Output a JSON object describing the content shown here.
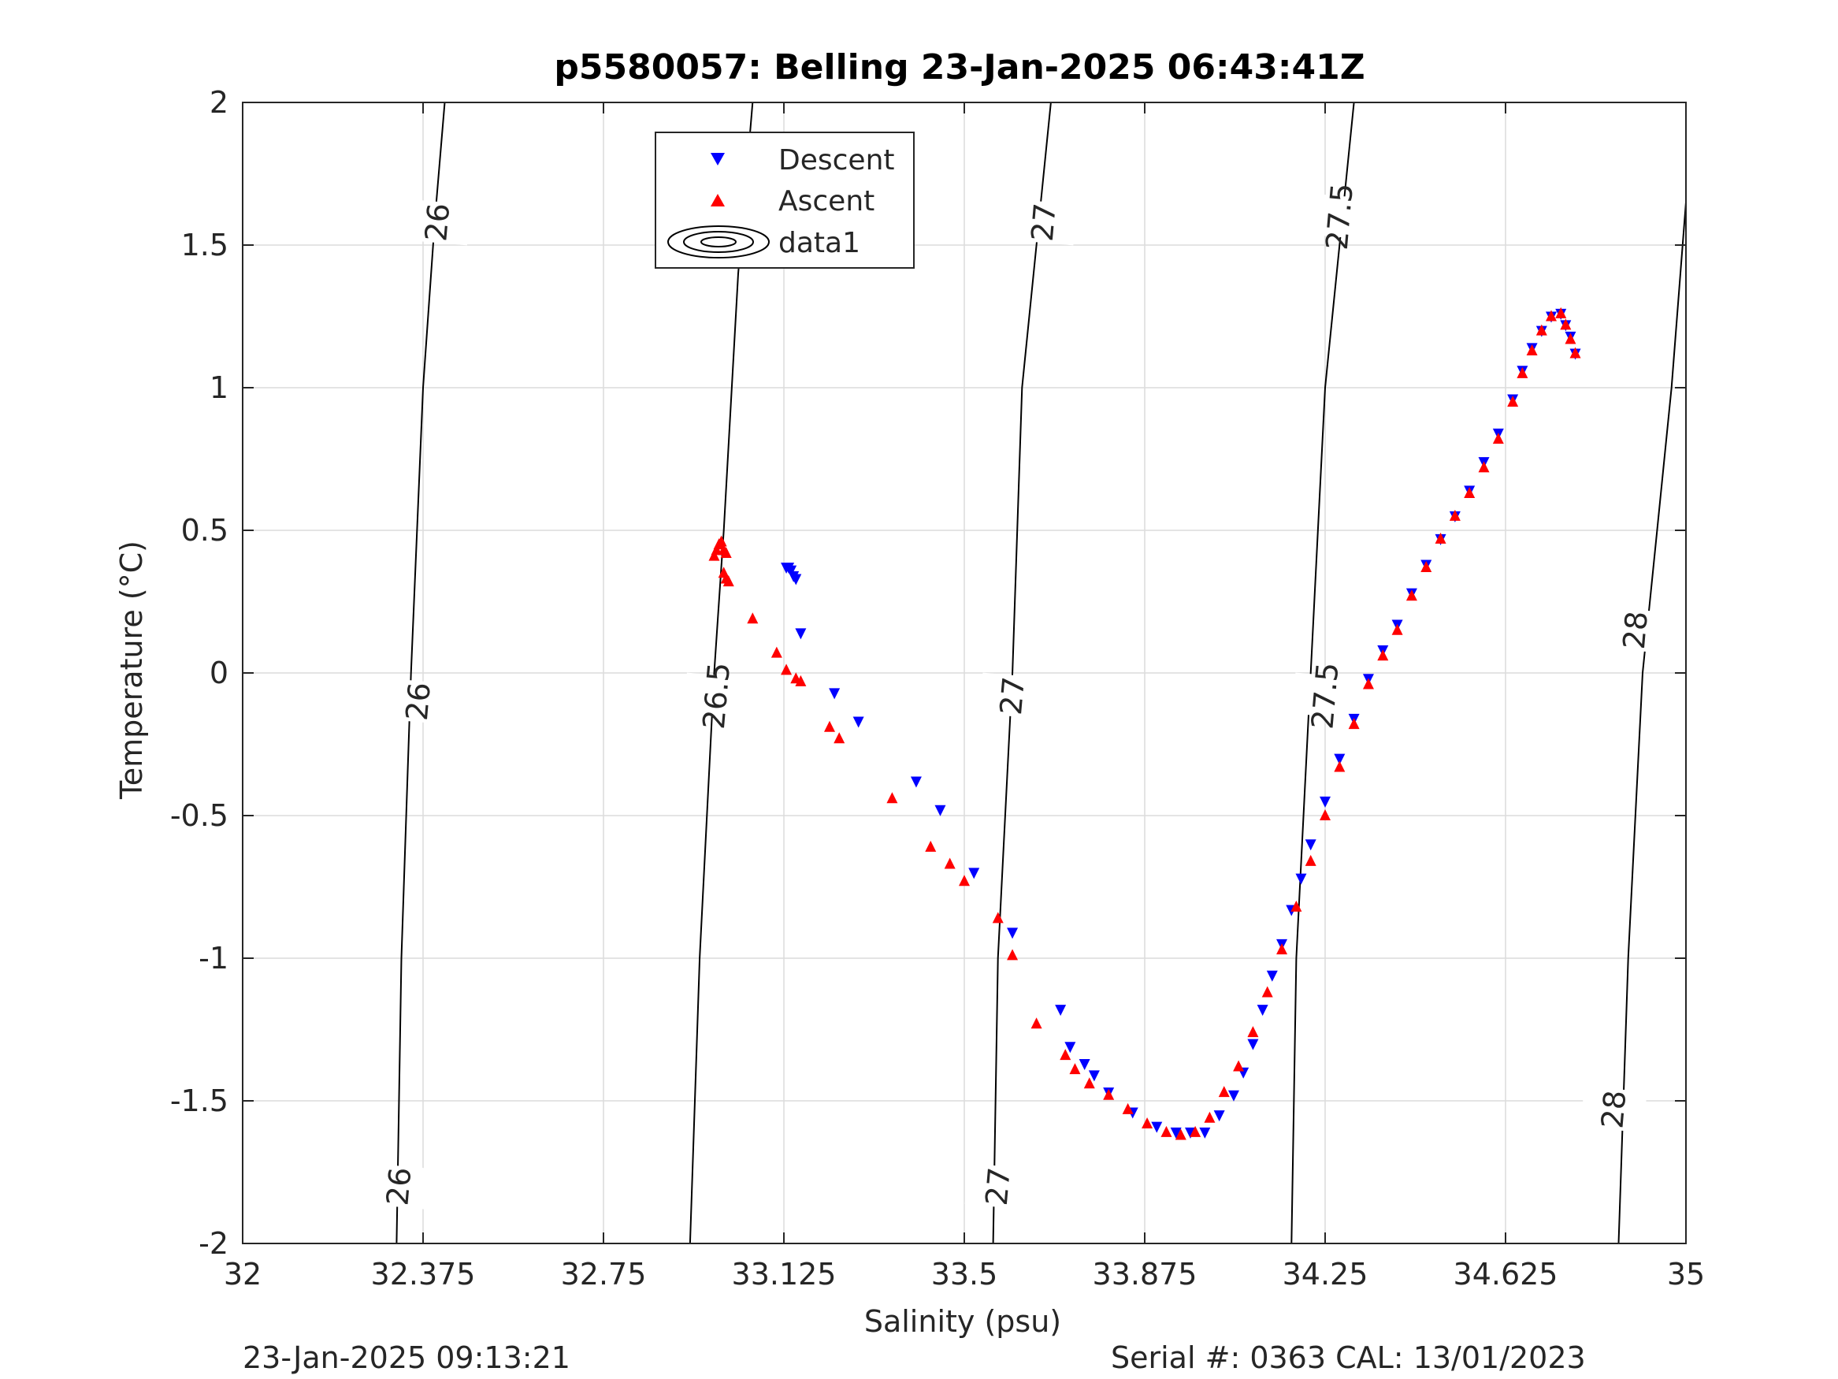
{
  "chart_data": {
    "type": "scatter",
    "title": "p5580057: Belling 23-Jan-2025 06:43:41Z",
    "xlabel": "Salinity (psu)",
    "ylabel": "Temperature (°C)",
    "xlim": [
      32,
      35
    ],
    "ylim": [
      -2,
      2
    ],
    "xticks": [
      32,
      32.375,
      32.75,
      33.125,
      33.5,
      33.875,
      34.25,
      34.625,
      35
    ],
    "xtick_labels": [
      "32",
      "32.375",
      "32.75",
      "33.125",
      "33.5",
      "33.875",
      "34.25",
      "34.625",
      "35"
    ],
    "yticks": [
      -2,
      -1.5,
      -1,
      -0.5,
      0,
      0.5,
      1,
      1.5,
      2
    ],
    "ytick_labels": [
      "-2",
      "-1.5",
      "-1",
      "-0.5",
      "0",
      "0.5",
      "1",
      "1.5",
      "2"
    ],
    "grid": true,
    "legend_position": "top-center",
    "legend": [
      "Descent",
      "Ascent",
      "data1"
    ],
    "series": [
      {
        "name": "Descent",
        "marker": "down-triangle",
        "color": "#0000ff",
        "x": [
          33.13,
          33.135,
          33.14,
          33.145,
          33.15,
          33.16,
          33.23,
          33.28,
          33.4,
          33.45,
          33.52,
          33.6,
          33.7,
          33.72,
          33.75,
          33.77,
          33.8,
          33.85,
          33.9,
          33.94,
          33.97,
          34.0,
          34.03,
          34.06,
          34.08,
          34.1,
          34.12,
          34.14,
          34.16,
          34.18,
          34.2,
          34.22,
          34.25,
          34.28,
          34.31,
          34.34,
          34.37,
          34.4,
          34.43,
          34.46,
          34.49,
          34.52,
          34.55,
          34.58,
          34.61,
          34.64,
          34.66,
          34.68,
          34.7,
          34.72,
          34.74,
          34.75,
          34.76,
          34.77
        ],
        "y": [
          0.37,
          0.37,
          0.36,
          0.34,
          0.33,
          0.14,
          -0.07,
          -0.17,
          -0.38,
          -0.48,
          -0.7,
          -0.91,
          -1.18,
          -1.31,
          -1.37,
          -1.41,
          -1.47,
          -1.54,
          -1.59,
          -1.61,
          -1.61,
          -1.61,
          -1.55,
          -1.48,
          -1.4,
          -1.3,
          -1.18,
          -1.06,
          -0.95,
          -0.83,
          -0.72,
          -0.6,
          -0.45,
          -0.3,
          -0.16,
          -0.02,
          0.08,
          0.17,
          0.28,
          0.38,
          0.47,
          0.55,
          0.64,
          0.74,
          0.84,
          0.96,
          1.06,
          1.14,
          1.2,
          1.25,
          1.26,
          1.22,
          1.18,
          1.12
        ]
      },
      {
        "name": "Ascent",
        "marker": "up-triangle",
        "color": "#ff0000",
        "x": [
          32.98,
          32.985,
          32.99,
          32.995,
          33.0,
          33.005,
          33.0,
          33.005,
          33.01,
          33.06,
          33.11,
          33.13,
          33.15,
          33.16,
          33.22,
          33.24,
          33.35,
          33.43,
          33.47,
          33.5,
          33.57,
          33.6,
          33.65,
          33.71,
          33.73,
          33.76,
          33.8,
          33.84,
          33.88,
          33.92,
          33.95,
          33.98,
          34.01,
          34.04,
          34.07,
          34.1,
          34.13,
          34.16,
          34.19,
          34.22,
          34.25,
          34.28,
          34.31,
          34.34,
          34.37,
          34.4,
          34.43,
          34.46,
          34.49,
          34.52,
          34.55,
          34.58,
          34.61,
          34.64,
          34.66,
          34.68,
          34.7,
          34.72,
          34.74,
          34.75,
          34.76,
          34.77
        ],
        "y": [
          0.41,
          0.43,
          0.45,
          0.46,
          0.43,
          0.42,
          0.35,
          0.33,
          0.32,
          0.19,
          0.07,
          0.01,
          -0.02,
          -0.03,
          -0.19,
          -0.23,
          -0.44,
          -0.61,
          -0.67,
          -0.73,
          -0.86,
          -0.99,
          -1.23,
          -1.34,
          -1.39,
          -1.44,
          -1.48,
          -1.53,
          -1.58,
          -1.61,
          -1.62,
          -1.61,
          -1.56,
          -1.47,
          -1.38,
          -1.26,
          -1.12,
          -0.97,
          -0.82,
          -0.66,
          -0.5,
          -0.33,
          -0.18,
          -0.04,
          0.06,
          0.15,
          0.27,
          0.37,
          0.47,
          0.55,
          0.63,
          0.72,
          0.82,
          0.95,
          1.05,
          1.13,
          1.2,
          1.25,
          1.26,
          1.22,
          1.17,
          1.12
        ]
      }
    ],
    "contours": [
      {
        "level": "26",
        "x": [
          32.42,
          32.4,
          32.375,
          32.35,
          32.33,
          32.32
        ],
        "y": [
          2,
          1.6,
          1,
          0,
          -1,
          -2
        ],
        "labels": [
          {
            "x": 32.405,
            "y": 1.58
          },
          {
            "x": 32.365,
            "y": -0.1
          },
          {
            "x": 32.325,
            "y": -1.8
          }
        ]
      },
      {
        "level": "26.5",
        "x": [
          33.06,
          33.03,
          33.0,
          32.98,
          32.95,
          32.93
        ],
        "y": [
          2,
          1.4,
          0.5,
          0,
          -1,
          -2
        ],
        "labels": [
          {
            "x": 33.0,
            "y": 1.55
          },
          {
            "x": 32.985,
            "y": -0.08
          }
        ]
      },
      {
        "level": "27",
        "x": [
          33.68,
          33.65,
          33.62,
          33.6,
          33.57,
          33.56
        ],
        "y": [
          2,
          1.5,
          1,
          0,
          -1,
          -2
        ],
        "labels": [
          {
            "x": 33.665,
            "y": 1.58
          },
          {
            "x": 33.6,
            "y": -0.08
          },
          {
            "x": 33.57,
            "y": -1.8
          }
        ]
      },
      {
        "level": "27.5",
        "x": [
          34.31,
          34.28,
          34.25,
          34.22,
          34.19,
          34.18
        ],
        "y": [
          2,
          1.5,
          1,
          0,
          -1,
          -2
        ],
        "labels": [
          {
            "x": 34.28,
            "y": 1.6
          },
          {
            "x": 34.25,
            "y": -0.08
          }
        ]
      },
      {
        "level": "28",
        "x": [
          35,
          34.97,
          34.94,
          34.91,
          34.88,
          34.86
        ],
        "y": [
          1.65,
          1,
          0.5,
          0,
          -1,
          -2
        ],
        "labels": [
          {
            "x": 34.895,
            "y": 0.15
          },
          {
            "x": 34.85,
            "y": -1.53
          }
        ]
      }
    ],
    "footer_left": "23-Jan-2025 09:13:21",
    "footer_right": "Serial #: 0363  CAL: 13/01/2023"
  }
}
